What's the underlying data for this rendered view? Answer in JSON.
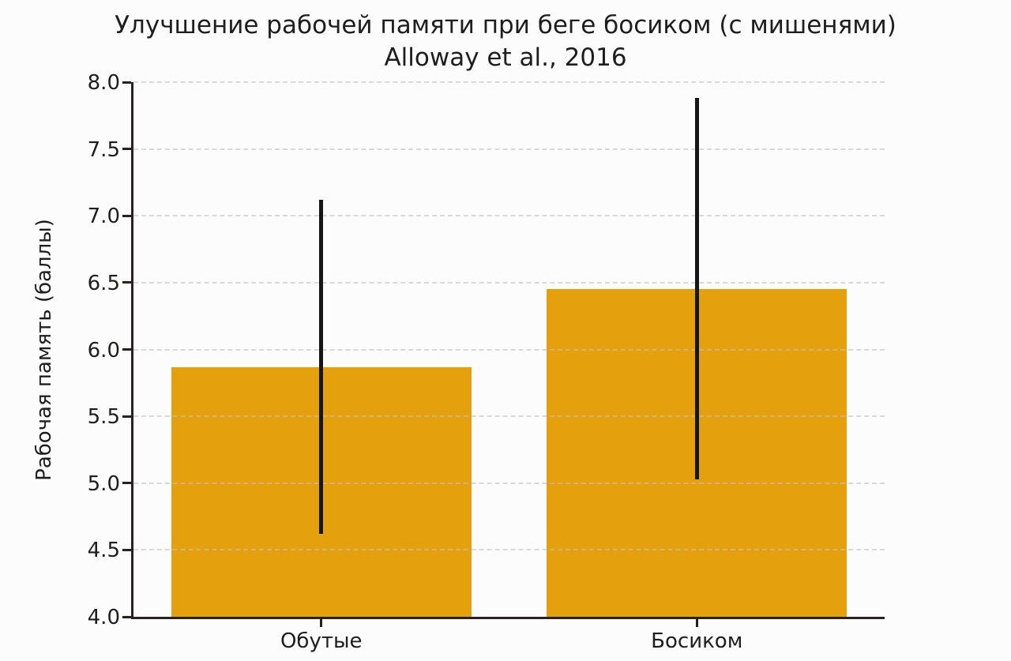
{
  "chart_data": {
    "type": "bar",
    "title": "Улучшение рабочей памяти при беге босиком (с мишенями)",
    "subtitle": "Alloway et al., 2016",
    "ylabel": "Рабочая память (баллы)",
    "xlabel": "",
    "categories": [
      "Обутые",
      "Босиком"
    ],
    "values": [
      5.87,
      6.45
    ],
    "error_bars": {
      "low": [
        4.62,
        5.03
      ],
      "high": [
        7.12,
        7.88
      ]
    },
    "ylim": [
      4.0,
      8.0
    ],
    "y_ticks": [
      "4.0",
      "4.5",
      "5.0",
      "5.5",
      "6.0",
      "6.5",
      "7.0",
      "7.5",
      "8.0"
    ],
    "grid": "horizontal dashed",
    "legend": "none",
    "bar_width_fraction_of_slot": 0.8,
    "colors": {
      "bar": "#E5A00E",
      "error": "#161616",
      "grid": "#c6c1c6",
      "axis": "#28211f",
      "text": "#1e1e1e",
      "background": "#fdfcfd"
    }
  }
}
